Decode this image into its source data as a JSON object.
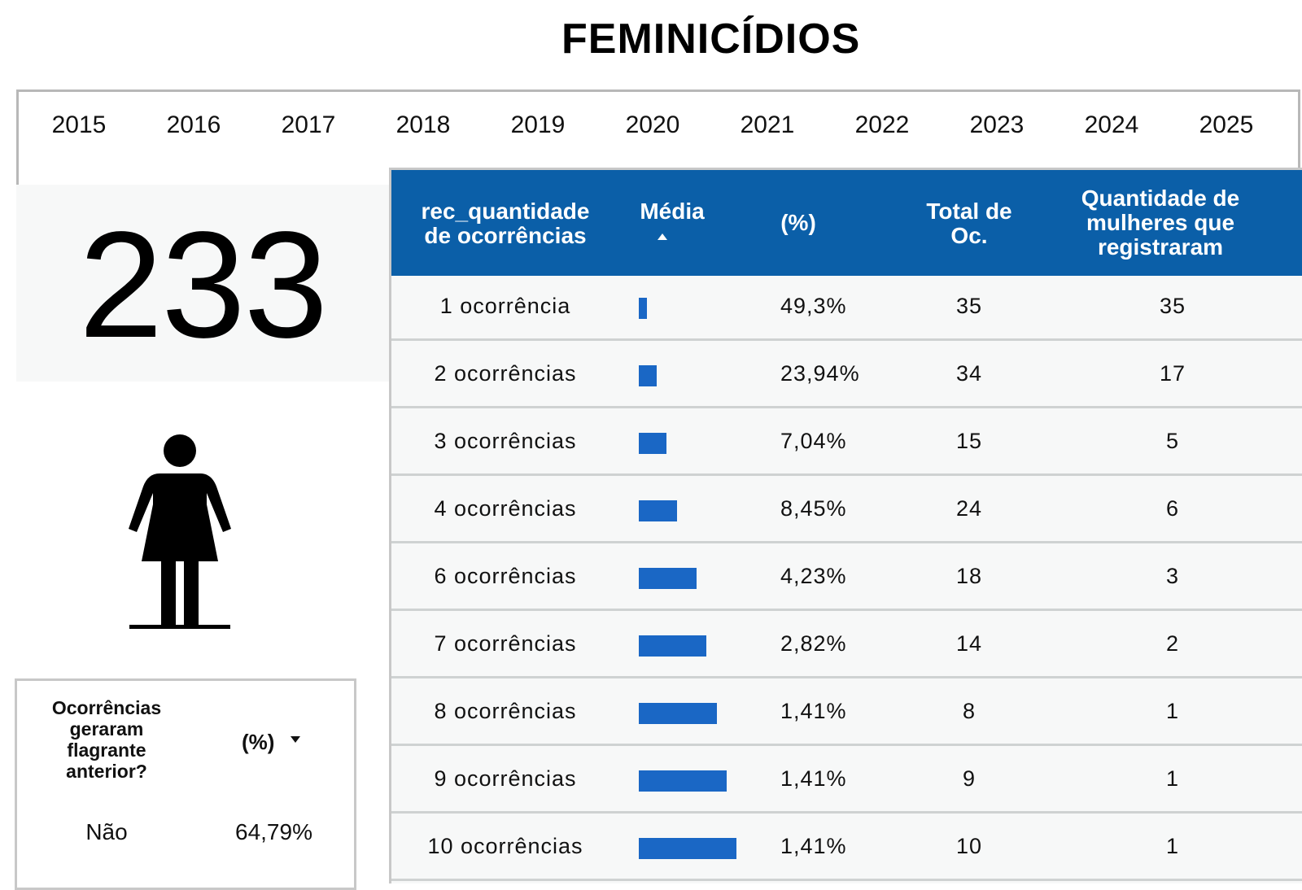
{
  "page": {
    "title": "FEMINICÍDIOS"
  },
  "years": [
    "2015",
    "2016",
    "2017",
    "2018",
    "2019",
    "2020",
    "2021",
    "2022",
    "2023",
    "2024",
    "2025"
  ],
  "kpi": {
    "value": "233"
  },
  "flag_table": {
    "header_question": "Ocorrências geraram flagrante anterior?",
    "header_pct": "(%)",
    "rows": [
      {
        "label": "Não",
        "pct": "64,79%"
      }
    ]
  },
  "main_table": {
    "headers": {
      "label": "rec_quantidade de ocorrências",
      "media": "Média",
      "pct": "(%)",
      "total": "Total de Oc.",
      "qty": "Quantidade de mulheres que registraram"
    },
    "rows": [
      {
        "label": "1 ocorrência",
        "media": 1,
        "pct": "49,3%",
        "total": "35",
        "qty": "35"
      },
      {
        "label": "2 ocorrências",
        "media": 2,
        "pct": "23,94%",
        "total": "34",
        "qty": "17"
      },
      {
        "label": "3 ocorrências",
        "media": 3,
        "pct": "7,04%",
        "total": "15",
        "qty": "5"
      },
      {
        "label": "4 ocorrências",
        "media": 4,
        "pct": "8,45%",
        "total": "24",
        "qty": "6"
      },
      {
        "label": "6 ocorrências",
        "media": 6,
        "pct": "4,23%",
        "total": "18",
        "qty": "3"
      },
      {
        "label": "7 ocorrências",
        "media": 7,
        "pct": "2,82%",
        "total": "14",
        "qty": "2"
      },
      {
        "label": "8 ocorrências",
        "media": 8,
        "pct": "1,41%",
        "total": "8",
        "qty": "1"
      },
      {
        "label": "9 ocorrências",
        "media": 9,
        "pct": "1,41%",
        "total": "9",
        "qty": "1"
      },
      {
        "label": "10 ocorrências",
        "media": 10,
        "pct": "1,41%",
        "total": "10",
        "qty": "1"
      }
    ],
    "bar_color": "#1a67c5"
  },
  "icons": {
    "figure": "woman-icon",
    "sort_asc": "sort-asc-icon",
    "sort_desc": "sort-desc-icon"
  }
}
